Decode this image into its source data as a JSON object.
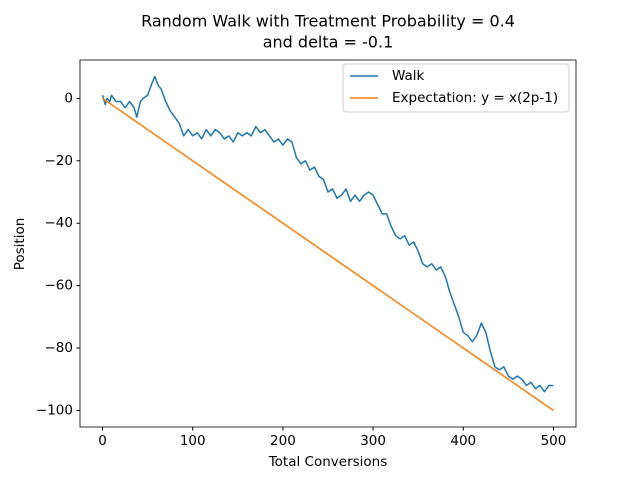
{
  "chart_data": {
    "type": "line",
    "title": [
      "Random Walk with Treatment Probability = 0.4",
      "and delta = -0.1"
    ],
    "x_label": "Total Conversions",
    "y_label": "Position",
    "xlim": [
      -25,
      525
    ],
    "ylim": [
      -105.3,
      12.3
    ],
    "xticks": [
      0,
      100,
      200,
      300,
      400,
      500
    ],
    "yticks": [
      {
        "value": -100,
        "label": "−100"
      },
      {
        "value": -80,
        "label": "−80"
      },
      {
        "value": -60,
        "label": "−60"
      },
      {
        "value": -40,
        "label": "−40"
      },
      {
        "value": -20,
        "label": "−20"
      },
      0
    ],
    "legend": "upper right",
    "series": [
      {
        "name": "Walk",
        "color": "#1f77b4",
        "x": [
          0,
          3,
          5,
          8,
          10,
          15,
          20,
          25,
          30,
          35,
          38,
          42,
          45,
          50,
          55,
          58,
          62,
          65,
          70,
          75,
          80,
          85,
          90,
          95,
          100,
          105,
          110,
          115,
          120,
          125,
          130,
          135,
          140,
          145,
          150,
          155,
          160,
          165,
          170,
          175,
          180,
          185,
          190,
          195,
          200,
          205,
          210,
          215,
          220,
          225,
          230,
          235,
          240,
          245,
          250,
          255,
          260,
          265,
          270,
          275,
          280,
          285,
          290,
          295,
          300,
          305,
          310,
          315,
          320,
          325,
          330,
          335,
          340,
          345,
          350,
          355,
          360,
          365,
          370,
          375,
          380,
          385,
          390,
          395,
          400,
          405,
          410,
          415,
          420,
          425,
          430,
          435,
          440,
          445,
          450,
          455,
          460,
          465,
          470,
          475,
          480,
          485,
          490,
          495,
          500
        ],
        "values": [
          1,
          -2,
          0,
          -1,
          1,
          -1,
          -1,
          -3,
          -1,
          -3,
          -6,
          -1,
          0,
          1,
          5,
          7,
          4,
          3,
          -1,
          -4,
          -6,
          -8,
          -12,
          -10,
          -12,
          -11,
          -13,
          -10,
          -12,
          -10,
          -11,
          -13,
          -12,
          -14,
          -11,
          -12,
          -11,
          -12,
          -9,
          -11,
          -10,
          -12,
          -14,
          -13,
          -15,
          -13,
          -14,
          -19,
          -21,
          -20,
          -23,
          -22,
          -25,
          -26,
          -30,
          -29,
          -32,
          -31,
          -29,
          -33,
          -31,
          -33,
          -31,
          -30,
          -31,
          -34,
          -37,
          -37,
          -41,
          -44,
          -45,
          -44,
          -47,
          -46,
          -49,
          -53,
          -54,
          -53,
          -55,
          -54,
          -57,
          -62,
          -66,
          -70,
          -75,
          -76,
          -78,
          -76,
          -72,
          -75,
          -81,
          -86,
          -87,
          -86,
          -89,
          -90,
          -89,
          -90,
          -92,
          -91,
          -93,
          -92,
          -94,
          -92,
          -92
        ]
      },
      {
        "name": "Expectation: y = x(2p-1)",
        "color": "#ff7f0e",
        "x": [
          0,
          500
        ],
        "values": [
          0,
          -100
        ]
      }
    ]
  }
}
